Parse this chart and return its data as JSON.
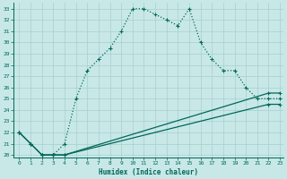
{
  "xlabel": "Humidex (Indice chaleur)",
  "background_color": "#c8e8e8",
  "grid_color": "#a8cece",
  "line_color": "#006858",
  "ylim": [
    19.8,
    33.5
  ],
  "xlim": [
    -0.5,
    23.3
  ],
  "yticks": [
    20,
    21,
    22,
    23,
    24,
    25,
    26,
    27,
    28,
    29,
    30,
    31,
    32,
    33
  ],
  "xticks": [
    0,
    1,
    2,
    3,
    4,
    5,
    6,
    7,
    8,
    9,
    10,
    11,
    12,
    13,
    14,
    15,
    16,
    17,
    18,
    19,
    20,
    21,
    22,
    23
  ],
  "line1_x": [
    0,
    1,
    2,
    3,
    4,
    5,
    6,
    7,
    8,
    9,
    10,
    11,
    12,
    13,
    14,
    15,
    16,
    17,
    18,
    19,
    20,
    21,
    22,
    23
  ],
  "line1_y": [
    22.0,
    21.0,
    20.0,
    20.0,
    21.0,
    25.0,
    27.5,
    28.5,
    29.5,
    31.0,
    33.0,
    33.0,
    32.5,
    32.0,
    31.5,
    33.0,
    30.0,
    28.5,
    27.5,
    27.5,
    26.0,
    25.0,
    25.0,
    25.0
  ],
  "line2_x": [
    0,
    1,
    2,
    3,
    4,
    22,
    23
  ],
  "line2_y": [
    22.0,
    21.0,
    20.0,
    20.0,
    20.0,
    25.5,
    25.5
  ],
  "line3_x": [
    0,
    1,
    2,
    3,
    4,
    22,
    23
  ],
  "line3_y": [
    22.0,
    21.0,
    20.0,
    20.0,
    20.0,
    24.5,
    24.5
  ]
}
